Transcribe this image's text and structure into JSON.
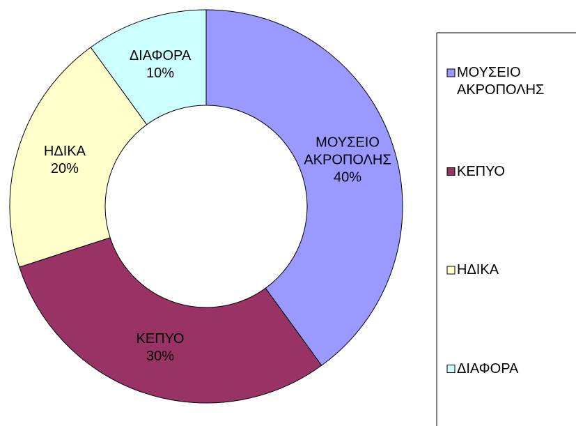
{
  "chart_data": {
    "type": "donut",
    "categories": [
      "ΜΟΥΣΕΙΟ ΑΚΡΟΠΟΛΗΣ",
      "ΚΕΠΥΟ",
      "ΗΔΙΚΑ",
      "ΔΙΑΦΟΡΑ"
    ],
    "values": [
      40,
      30,
      20,
      10
    ],
    "value_labels": [
      "40%",
      "30%",
      "20%",
      "10%"
    ],
    "colors": [
      "#9999ff",
      "#993366",
      "#ffffcc",
      "#ccffff"
    ],
    "legend": "right"
  }
}
